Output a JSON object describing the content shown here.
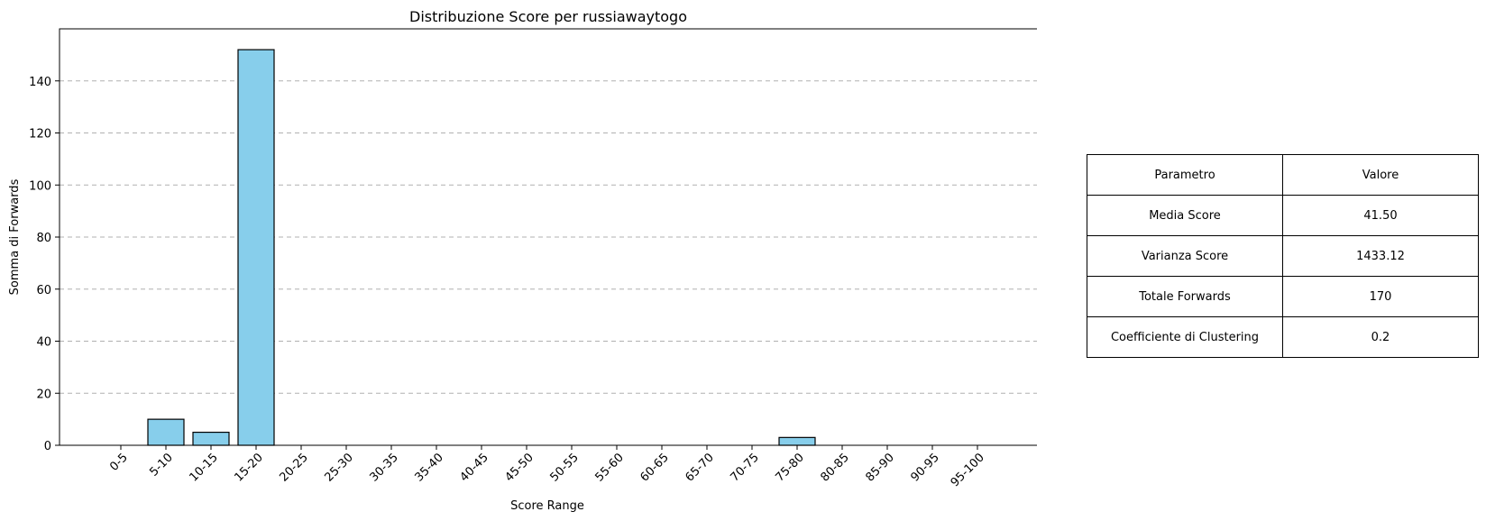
{
  "chart_data": {
    "type": "bar",
    "title": "Distribuzione Score per russiawaytogo",
    "xlabel": "Score Range",
    "ylabel": "Somma di Forwards",
    "categories": [
      "0-5",
      "5-10",
      "10-15",
      "15-20",
      "20-25",
      "25-30",
      "30-35",
      "35-40",
      "40-45",
      "45-50",
      "50-55",
      "55-60",
      "60-65",
      "65-70",
      "70-75",
      "75-80",
      "80-85",
      "85-90",
      "90-95",
      "95-100"
    ],
    "values": [
      0,
      10,
      5,
      152,
      0,
      0,
      0,
      0,
      0,
      0,
      0,
      0,
      0,
      0,
      0,
      3,
      0,
      0,
      0,
      0
    ],
    "ylim": [
      0,
      160
    ],
    "yticks": [
      0,
      20,
      40,
      60,
      80,
      100,
      120,
      140
    ],
    "grid": "y-dashed",
    "bar_color": "#87ceeb",
    "edge_color": "#000000"
  },
  "stats_table": {
    "header": [
      "Parametro",
      "Valore"
    ],
    "rows": [
      [
        "Media Score",
        "41.50"
      ],
      [
        "Varianza Score",
        "1433.12"
      ],
      [
        "Totale Forwards",
        "170"
      ],
      [
        "Coefficiente di Clustering",
        "0.2"
      ]
    ]
  }
}
